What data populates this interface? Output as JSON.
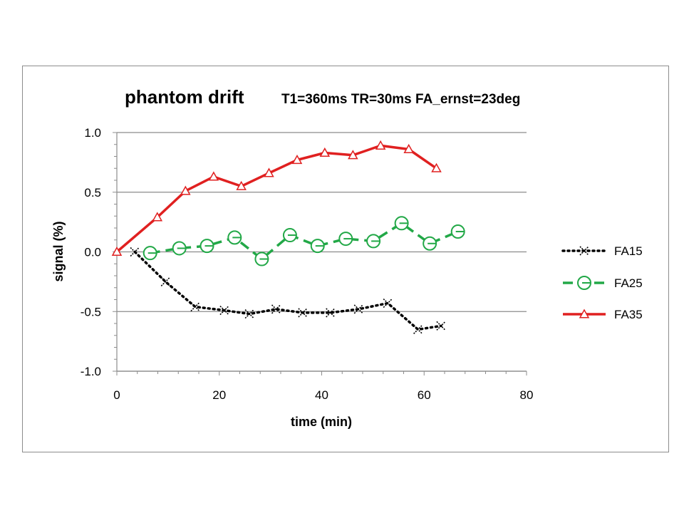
{
  "chart_data": {
    "type": "line",
    "title": "phantom drift",
    "subtitle": "T1=360ms TR=30ms FA_ernst=23deg",
    "xlabel": "time (min)",
    "ylabel": "signal (%)",
    "xlim": [
      0,
      80
    ],
    "ylim": [
      -1.0,
      1.0
    ],
    "x_ticks": [
      0,
      20,
      40,
      60,
      80
    ],
    "y_ticks": [
      -1.0,
      -0.5,
      0.0,
      0.5,
      1.0
    ],
    "x_tick_labels": [
      "0",
      "20",
      "40",
      "60",
      "80"
    ],
    "y_tick_labels": [
      "-1.0",
      "-0.5",
      "0.0",
      "0.5",
      "1.0"
    ],
    "grid": "horizontal",
    "legend_position": "right",
    "series": [
      {
        "name": "FA15",
        "color": "#000000",
        "line_style": "dotted",
        "marker": "x",
        "x": [
          3.5,
          9.5,
          15.3,
          21.0,
          25.9,
          31.1,
          36.3,
          41.7,
          47.2,
          52.9,
          58.8,
          63.3
        ],
        "y": [
          0.0,
          -0.25,
          -0.46,
          -0.49,
          -0.52,
          -0.48,
          -0.51,
          -0.51,
          -0.48,
          -0.43,
          -0.65,
          -0.62
        ]
      },
      {
        "name": "FA25",
        "color": "#22a847",
        "line_style": "dashed",
        "marker": "circle",
        "x": [
          6.5,
          12.2,
          17.6,
          23.0,
          28.3,
          33.8,
          39.2,
          44.7,
          50.1,
          55.6,
          61.1,
          66.6
        ],
        "y": [
          -0.01,
          0.03,
          0.05,
          0.12,
          -0.06,
          0.14,
          0.05,
          0.11,
          0.09,
          0.24,
          0.07,
          0.17
        ]
      },
      {
        "name": "FA35",
        "color": "#e02020",
        "line_style": "solid",
        "marker": "triangle",
        "x": [
          0.0,
          7.9,
          13.4,
          18.9,
          24.3,
          29.7,
          35.2,
          40.6,
          46.1,
          51.5,
          57.0,
          62.4
        ],
        "y": [
          0.0,
          0.29,
          0.51,
          0.63,
          0.55,
          0.66,
          0.77,
          0.83,
          0.81,
          0.89,
          0.86,
          0.7
        ]
      }
    ]
  }
}
